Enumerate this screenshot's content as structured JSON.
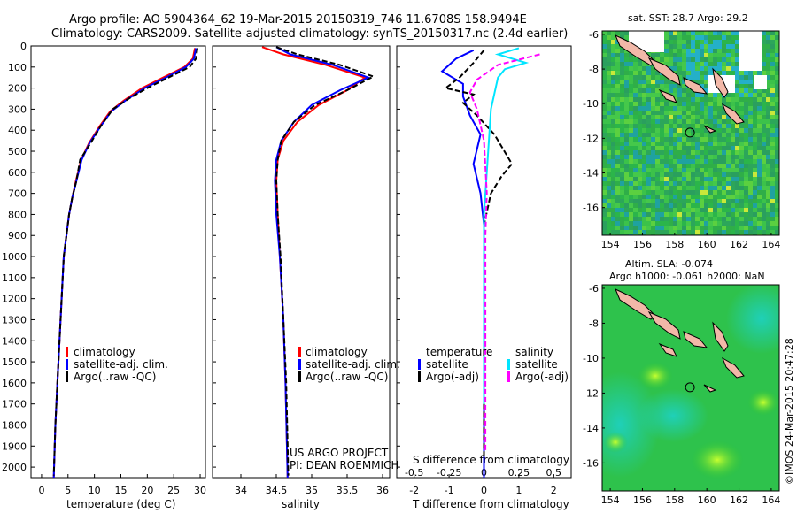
{
  "header": {
    "line1": "Argo profile: AO 5904364_62 19-Mar-2015 20150319_746 11.6708S 158.9494E",
    "line2": "Climatology: CARS2009. Satellite-adjusted climatology: synTS_20150317.nc (2.4d earlier)"
  },
  "colors": {
    "climatology": "#ff0000",
    "satellite": "#0000ff",
    "argo": "#000000",
    "sal_sat": "#00e5ff",
    "sal_argo": "#ff00ff",
    "land": "#f2b8a8"
  },
  "icons": {
    "legend_marker": "legend-bar-icon"
  },
  "depth_axis": {
    "ticks": [
      "0",
      "100",
      "200",
      "300",
      "400",
      "500",
      "600",
      "700",
      "800",
      "900",
      "1000",
      "1100",
      "1200",
      "1300",
      "1400",
      "1500",
      "1600",
      "1700",
      "1800",
      "1900",
      "2000"
    ],
    "max": 2050
  },
  "chart_data": [
    {
      "type": "line",
      "name": "temperature-profile",
      "xlabel": "temperature (deg C)",
      "xlim": [
        -2,
        31
      ],
      "xticks": [
        "0",
        "5",
        "10",
        "15",
        "20",
        "25",
        "30"
      ],
      "ylabel": "depth",
      "ylim": [
        0,
        2050
      ],
      "legend": [
        "climatology",
        "satellite-adj. clim.",
        "Argo(..raw -QC)"
      ],
      "series": [
        {
          "name": "climatology",
          "points": [
            [
              29,
              10
            ],
            [
              28.6,
              60
            ],
            [
              27,
              100
            ],
            [
              23,
              150
            ],
            [
              19,
              200
            ],
            [
              15.5,
              260
            ],
            [
              13,
              310
            ],
            [
              11,
              380
            ],
            [
              9,
              460
            ],
            [
              7.5,
              540
            ],
            [
              6.5,
              640
            ],
            [
              5.8,
              720
            ],
            [
              5.2,
              800
            ],
            [
              4.7,
              900
            ],
            [
              4.2,
              1000
            ],
            [
              3.8,
              1200
            ],
            [
              3.4,
              1400
            ],
            [
              3,
              1600
            ],
            [
              2.6,
              1800
            ],
            [
              2.3,
              2050
            ]
          ]
        },
        {
          "name": "satellite-adj. clim.",
          "points": [
            [
              29.2,
              10
            ],
            [
              28.8,
              60
            ],
            [
              27.3,
              100
            ],
            [
              23.5,
              150
            ],
            [
              19.5,
              200
            ],
            [
              15.8,
              260
            ],
            [
              13.2,
              310
            ],
            [
              11.2,
              380
            ],
            [
              9.1,
              460
            ],
            [
              7.6,
              540
            ],
            [
              6.6,
              640
            ],
            [
              5.8,
              720
            ],
            [
              5.2,
              800
            ],
            [
              4.7,
              900
            ],
            [
              4.2,
              1000
            ],
            [
              3.8,
              1200
            ],
            [
              3.4,
              1400
            ],
            [
              3,
              1600
            ],
            [
              2.6,
              1800
            ],
            [
              2.3,
              2050
            ]
          ]
        },
        {
          "name": "Argo(..raw -QC)",
          "points": [
            [
              29.5,
              10
            ],
            [
              29.2,
              60
            ],
            [
              28,
              100
            ],
            [
              24,
              150
            ],
            [
              20,
              200
            ],
            [
              16.5,
              250
            ],
            [
              13.5,
              300
            ],
            [
              11.2,
              380
            ],
            [
              9.3,
              460
            ],
            [
              7.3,
              540
            ],
            [
              6.6,
              640
            ],
            [
              5.8,
              720
            ],
            [
              5.2,
              800
            ],
            [
              4.7,
              900
            ],
            [
              4.2,
              1000
            ],
            [
              3.8,
              1200
            ],
            [
              3.4,
              1400
            ],
            [
              3,
              1600
            ],
            [
              2.6,
              1800
            ],
            [
              2.3,
              2040
            ]
          ]
        }
      ]
    },
    {
      "type": "line",
      "name": "salinity-profile",
      "xlabel": "salinity",
      "xlim": [
        33.6,
        36.1
      ],
      "xticks": [
        "34",
        "34.5",
        "35",
        "35.5",
        "36"
      ],
      "ylim": [
        0,
        2050
      ],
      "legend": [
        "climatology",
        "satellite-adj. clim.",
        "Argo(..raw -QC)"
      ],
      "annotation": [
        "US ARGO PROJECT",
        "PI: DEAN ROEMMICH"
      ],
      "series": [
        {
          "name": "climatology",
          "points": [
            [
              34.3,
              5
            ],
            [
              34.6,
              40
            ],
            [
              35.2,
              90
            ],
            [
              35.75,
              150
            ],
            [
              35.5,
              210
            ],
            [
              35.1,
              280
            ],
            [
              34.8,
              360
            ],
            [
              34.6,
              450
            ],
            [
              34.52,
              540
            ],
            [
              34.5,
              640
            ],
            [
              34.52,
              800
            ],
            [
              34.55,
              1000
            ],
            [
              34.6,
              1300
            ],
            [
              34.63,
              1600
            ],
            [
              34.66,
              2050
            ]
          ]
        },
        {
          "name": "satellite-adj. clim.",
          "points": [
            [
              34.5,
              5
            ],
            [
              34.7,
              40
            ],
            [
              35.3,
              90
            ],
            [
              35.8,
              150
            ],
            [
              35.4,
              210
            ],
            [
              35.0,
              280
            ],
            [
              34.75,
              360
            ],
            [
              34.57,
              450
            ],
            [
              34.5,
              540
            ],
            [
              34.48,
              640
            ],
            [
              34.5,
              800
            ],
            [
              34.55,
              1000
            ],
            [
              34.6,
              1300
            ],
            [
              34.63,
              1600
            ],
            [
              34.66,
              2050
            ]
          ]
        },
        {
          "name": "Argo(..raw -QC)",
          "points": [
            [
              34.5,
              5
            ],
            [
              34.8,
              40
            ],
            [
              35.4,
              90
            ],
            [
              35.87,
              145
            ],
            [
              35.5,
              210
            ],
            [
              35.05,
              280
            ],
            [
              34.75,
              360
            ],
            [
              34.57,
              450
            ],
            [
              34.52,
              540
            ],
            [
              34.5,
              640
            ],
            [
              34.52,
              800
            ],
            [
              34.56,
              1000
            ],
            [
              34.6,
              1300
            ],
            [
              34.64,
              1600
            ],
            [
              34.67,
              2040
            ]
          ]
        }
      ]
    },
    {
      "type": "line",
      "name": "difference-profile",
      "xlabel": "T difference from climatology",
      "xlabel2": "S difference from climatology",
      "xlim": [
        -2.5,
        2.5
      ],
      "xticks": [
        "-2",
        "-1",
        "0",
        "1",
        "2"
      ],
      "xticks_S": [
        "-0.5",
        "-0.25",
        "0",
        "0.25",
        "0.5"
      ],
      "ylim": [
        0,
        2050
      ],
      "legend": {
        "temperature": "temperature",
        "salinity": "salinity",
        "t_sat": "satellite",
        "t_argo": "Argo(-adj)",
        "s_sat": "satellite",
        "s_argo": "Argo(-adj)"
      },
      "series": [
        {
          "name": "T satellite",
          "points": [
            [
              -0.3,
              20
            ],
            [
              -0.8,
              60
            ],
            [
              -1.2,
              120
            ],
            [
              -0.6,
              180
            ],
            [
              -0.6,
              240
            ],
            [
              -0.4,
              330
            ],
            [
              -0.1,
              420
            ],
            [
              -0.3,
              560
            ],
            [
              -0.1,
              700
            ],
            [
              0,
              850
            ],
            [
              0,
              2050
            ]
          ]
        },
        {
          "name": "T Argo(-adj)",
          "points": [
            [
              0,
              20
            ],
            [
              -0.3,
              80
            ],
            [
              -0.7,
              150
            ],
            [
              -1.1,
              200
            ],
            [
              -0.3,
              230
            ],
            [
              -0.6,
              270
            ],
            [
              -0.2,
              330
            ],
            [
              0.3,
              420
            ],
            [
              0.8,
              560
            ],
            [
              0.5,
              620
            ],
            [
              0.2,
              700
            ],
            [
              0,
              850
            ],
            [
              0,
              1960
            ]
          ]
        },
        {
          "name": "S satellite",
          "points": [
            [
              0.25,
              10
            ],
            [
              0.1,
              40
            ],
            [
              0.3,
              80
            ],
            [
              0.15,
              110
            ],
            [
              0.1,
              150
            ],
            [
              0.05,
              300
            ],
            [
              0.02,
              600
            ],
            [
              0,
              800
            ],
            [
              0,
              1700
            ]
          ]
        },
        {
          "name": "S Argo(-adj)",
          "points": [
            [
              0.4,
              40
            ],
            [
              0.1,
              90
            ],
            [
              -0.05,
              160
            ],
            [
              -0.1,
              220
            ],
            [
              -0.05,
              300
            ],
            [
              0,
              450
            ],
            [
              0.02,
              700
            ],
            [
              0.01,
              900
            ],
            [
              0.01,
              1920
            ]
          ]
        }
      ]
    }
  ],
  "maps": [
    {
      "title": "sat. SST: 28.7 Argo: 29.2",
      "yticks": [
        "-6",
        "-8",
        "-10",
        "-12",
        "-14",
        "-16"
      ],
      "xticks": [
        "154",
        "156",
        "158",
        "160",
        "162",
        "164"
      ],
      "float_position": [
        158.95,
        -11.67
      ]
    },
    {
      "title": "Altim. SLA: -0.074",
      "subtitle": "Argo h1000: -0.061 h2000: NaN",
      "yticks": [
        "-6",
        "-8",
        "-10",
        "-12",
        "-14",
        "-16"
      ],
      "xticks": [
        "154",
        "156",
        "158",
        "160",
        "162",
        "164"
      ],
      "float_position": [
        158.95,
        -11.67
      ]
    }
  ],
  "credit": "©IMOS 24-Mar-2015 20:47:28"
}
